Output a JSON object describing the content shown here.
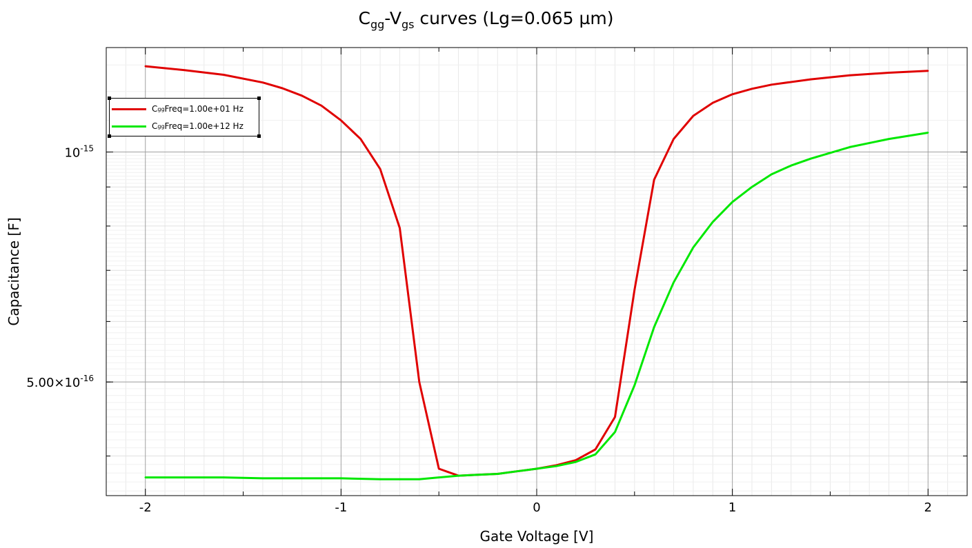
{
  "title": {
    "c": "C",
    "c_sub": "gg",
    "dash": "-V",
    "v_sub": "gs",
    "rest": " curves (Lg=0.065 µm)"
  },
  "axes": {
    "xlabel": "Gate Voltage [V]",
    "ylabel": "Capacitance [F]",
    "xlim": [
      -2.2,
      2.2
    ],
    "ylim": [
      3.55e-16,
      1.37e-15
    ],
    "yscale": "log",
    "x_ticks": [
      {
        "value": -2,
        "label": "-2"
      },
      {
        "value": -1,
        "label": "-1"
      },
      {
        "value": 0,
        "label": "0"
      },
      {
        "value": 1,
        "label": "1"
      },
      {
        "value": 2,
        "label": "2"
      }
    ],
    "y_ticks": [
      {
        "value": 1e-15,
        "base": "10",
        "exp": "-15"
      },
      {
        "value": 5e-16,
        "base": "5.00×10",
        "exp": "-16"
      }
    ],
    "grid": true
  },
  "legend": {
    "position": "top-left",
    "entries": [
      {
        "c": "C",
        "sub": "gg",
        "text": " Freq=1.00e+01 Hz",
        "color": "#e00000"
      },
      {
        "c": "C",
        "sub": "gg",
        "text": " Freq=1.00e+12 Hz",
        "color": "#00e800"
      }
    ]
  },
  "chart_data": {
    "type": "line",
    "series": [
      {
        "name": "Cgg Freq=1.00e+01 Hz",
        "color": "#e00000",
        "x": [
          -2.0,
          -1.8,
          -1.6,
          -1.4,
          -1.3,
          -1.2,
          -1.1,
          -1.0,
          -0.9,
          -0.8,
          -0.7,
          -0.6,
          -0.5,
          -0.4,
          -0.3,
          -0.2,
          -0.1,
          0.0,
          0.1,
          0.2,
          0.3,
          0.4,
          0.5,
          0.6,
          0.7,
          0.8,
          0.9,
          1.0,
          1.1,
          1.2,
          1.4,
          1.6,
          1.8,
          2.0
        ],
        "y": [
          1.295e-15,
          1.28e-15,
          1.262e-15,
          1.233e-15,
          1.212e-15,
          1.185e-15,
          1.15e-15,
          1.1e-15,
          1.04e-15,
          9.5e-16,
          7.95e-16,
          5e-16,
          3.85e-16,
          3.77e-16,
          3.78e-16,
          3.79e-16,
          3.82e-16,
          3.85e-16,
          3.89e-16,
          3.95e-16,
          4.08e-16,
          4.5e-16,
          6.6e-16,
          9.2e-16,
          1.04e-15,
          1.115e-15,
          1.16e-15,
          1.19e-15,
          1.21e-15,
          1.225e-15,
          1.245e-15,
          1.26e-15,
          1.27e-15,
          1.277e-15
        ]
      },
      {
        "name": "Cgg Freq=1.00e+12 Hz",
        "color": "#00e800",
        "x": [
          -2.0,
          -1.8,
          -1.6,
          -1.4,
          -1.2,
          -1.0,
          -0.8,
          -0.6,
          -0.4,
          -0.3,
          -0.2,
          -0.1,
          0.0,
          0.1,
          0.2,
          0.3,
          0.4,
          0.5,
          0.6,
          0.7,
          0.8,
          0.9,
          1.0,
          1.1,
          1.2,
          1.3,
          1.4,
          1.6,
          1.8,
          2.0
        ],
        "y": [
          3.75e-16,
          3.75e-16,
          3.75e-16,
          3.74e-16,
          3.74e-16,
          3.74e-16,
          3.73e-16,
          3.73e-16,
          3.77e-16,
          3.78e-16,
          3.79e-16,
          3.82e-16,
          3.85e-16,
          3.88e-16,
          3.93e-16,
          4.02e-16,
          4.3e-16,
          4.95e-16,
          5.9e-16,
          6.75e-16,
          7.5e-16,
          8.1e-16,
          8.6e-16,
          9e-16,
          9.35e-16,
          9.6e-16,
          9.8e-16,
          1.015e-15,
          1.04e-15,
          1.06e-15
        ]
      }
    ]
  }
}
